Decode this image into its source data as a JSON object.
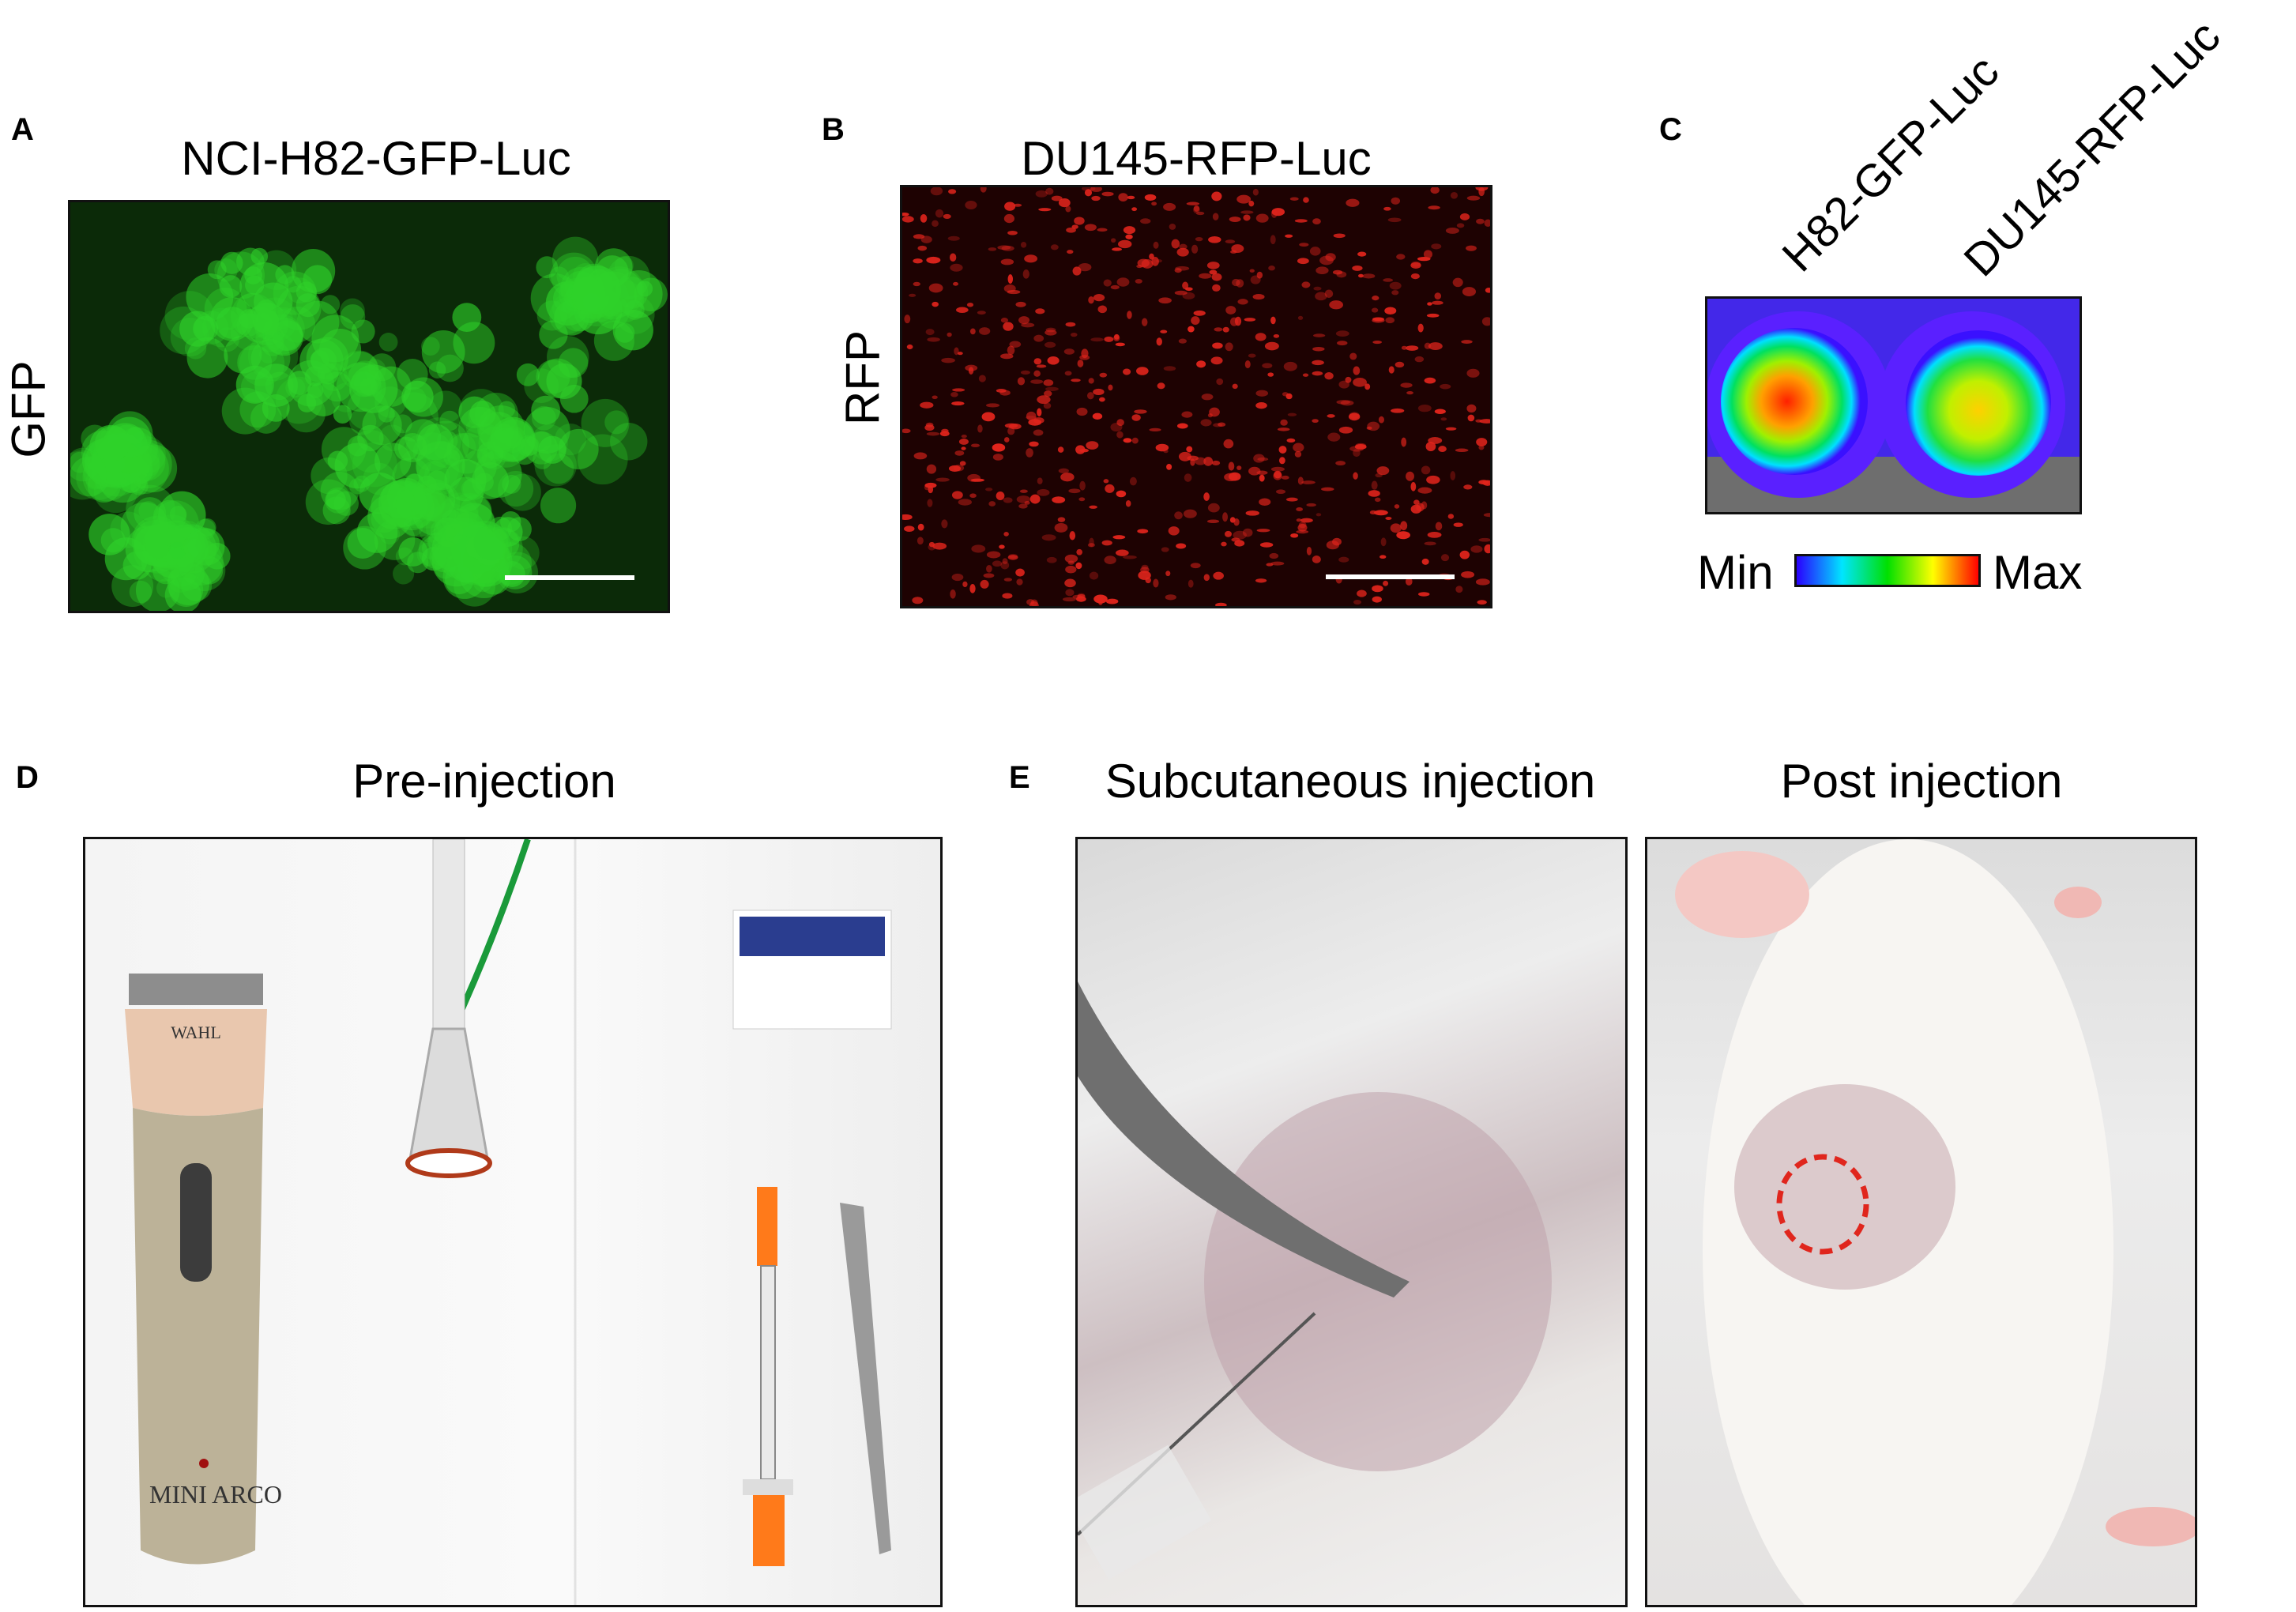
{
  "panels": {
    "A": {
      "letter": "A",
      "title": "NCI-H82-GFP-Luc",
      "channel_label": "GFP",
      "color": "#2fd22a"
    },
    "B": {
      "letter": "B",
      "title": "DU145-RFP-Luc",
      "channel_label": "RFP",
      "color": "#e0241c"
    },
    "C": {
      "letter": "C",
      "well_labels": [
        "H82-GFP-Luc",
        "DU145-RFP-Luc"
      ],
      "colorbar": {
        "min_label": "Min",
        "max_label": "Max",
        "colors": [
          "#2a00ff",
          "#00e5ff",
          "#00e000",
          "#ffff00",
          "#ff0000"
        ]
      }
    },
    "D": {
      "letter": "D",
      "title": "Pre-injection",
      "clipper_brand": "WAHL",
      "clipper_model": "MINI ARCO"
    },
    "E": {
      "letter": "E",
      "titles": [
        "Subcutaneous injection",
        "Post injection"
      ],
      "annotation_color": "#e0261d"
    }
  }
}
